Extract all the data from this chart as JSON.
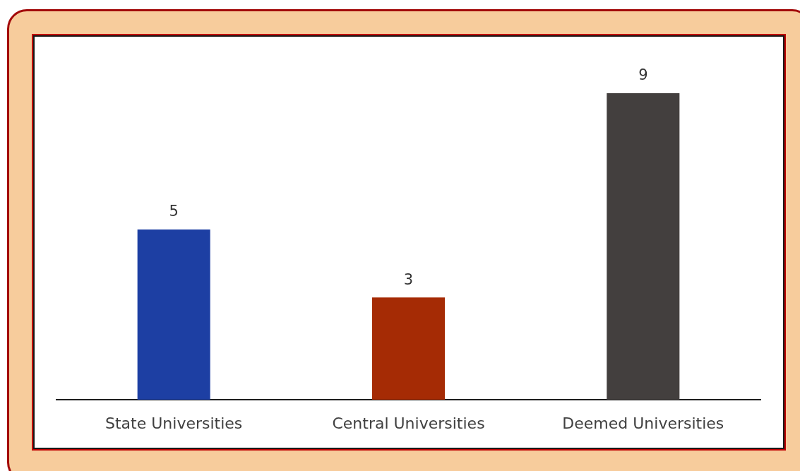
{
  "chart_data": {
    "type": "bar",
    "categories": [
      "State Universities",
      "Central Universities",
      "Deemed Universities"
    ],
    "values": [
      5,
      3,
      9
    ],
    "colors": [
      "#1d3fa3",
      "#a52b05",
      "#433f3e"
    ],
    "data_labels": true
  }
}
